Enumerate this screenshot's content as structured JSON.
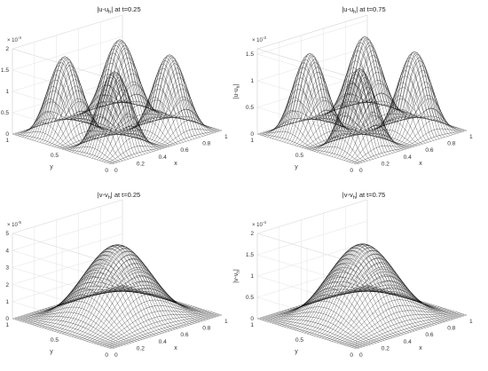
{
  "chart_data": [
    {
      "type": "surface",
      "title_main": "|u-u",
      "title_sub": "h",
      "title_tail": "| at t=0.25",
      "zlabel_main": "|u-u",
      "zlabel_sub": "h",
      "zlabel_tail": "|",
      "xlabel": "x",
      "ylabel": "y",
      "multiplier_base": "× 10",
      "multiplier_exp": "-4",
      "zlim": [
        0,
        2
      ],
      "zticks": [
        "0",
        "0.5",
        "1",
        "1.5",
        "2"
      ],
      "xticks": [
        "0",
        "0.2",
        "0.4",
        "0.6",
        "0.8",
        "1"
      ],
      "yticks": [
        "1",
        "0.5",
        "0"
      ],
      "peak": 1.8,
      "shape": "four-bump",
      "xlim": [
        0,
        1
      ],
      "ylim": [
        0,
        1
      ],
      "colormap": [
        "#3e26a8",
        "#4744e8",
        "#2e87f7",
        "#0cb5cc",
        "#36c18c",
        "#9dc43a",
        "#f0b83a",
        "#f9fb15"
      ]
    },
    {
      "type": "surface",
      "title_main": "|u-u",
      "title_sub": "h",
      "title_tail": "| at t=0.75",
      "zlabel_main": "|u-u",
      "zlabel_sub": "h",
      "zlabel_tail": "|",
      "xlabel": "x",
      "ylabel": "y",
      "multiplier_base": "× 10",
      "multiplier_exp": "-3",
      "zlim": [
        0,
        1.6
      ],
      "zticks": [
        "0",
        "0.5",
        "1",
        "1.5"
      ],
      "xticks": [
        "0",
        "0.2",
        "0.4",
        "0.6",
        "0.8",
        "1"
      ],
      "yticks": [
        "1",
        "0.5",
        "0"
      ],
      "peak": 1.5,
      "shape": "four-bump",
      "xlim": [
        0,
        1
      ],
      "ylim": [
        0,
        1
      ],
      "colormap": [
        "#3e26a8",
        "#4744e8",
        "#2e87f7",
        "#0cb5cc",
        "#36c18c",
        "#9dc43a",
        "#f0b83a",
        "#f9fb15"
      ]
    },
    {
      "type": "surface",
      "title_main": "|v-v",
      "title_sub": "h",
      "title_tail": "| at t=0.25",
      "zlabel_main": "|v-v",
      "zlabel_sub": "h",
      "zlabel_tail": "|",
      "xlabel": "x",
      "ylabel": "y",
      "multiplier_base": "× 10",
      "multiplier_exp": "-5",
      "zlim": [
        0,
        5
      ],
      "zticks": [
        "0",
        "1",
        "2",
        "3",
        "4",
        "5"
      ],
      "xticks": [
        "0",
        "0.2",
        "0.4",
        "0.6",
        "0.8",
        "1"
      ],
      "yticks": [
        "1",
        "0.5",
        "0"
      ],
      "peak": 4.2,
      "shape": "single-bump",
      "xlim": [
        0,
        1
      ],
      "ylim": [
        0,
        1
      ],
      "colormap": [
        "#3e26a8",
        "#4744e8",
        "#2e87f7",
        "#0cb5cc",
        "#36c18c",
        "#9dc43a",
        "#f0b83a",
        "#f9fb15"
      ]
    },
    {
      "type": "surface",
      "title_main": "|v-v",
      "title_sub": "h",
      "title_tail": "| at t=0.75",
      "zlabel_main": "|v-v",
      "zlabel_sub": "h",
      "zlabel_tail": "|",
      "xlabel": "x",
      "ylabel": "y",
      "multiplier_base": "× 10",
      "multiplier_exp": "-4",
      "zlim": [
        0,
        2
      ],
      "zticks": [
        "0",
        "0.5",
        "1",
        "1.5",
        "2"
      ],
      "xticks": [
        "0",
        "0.2",
        "0.4",
        "0.6",
        "0.8",
        "1"
      ],
      "yticks": [
        "1",
        "0.5",
        "0"
      ],
      "peak": 1.7,
      "shape": "single-bump",
      "xlim": [
        0,
        1
      ],
      "ylim": [
        0,
        1
      ],
      "colormap": [
        "#3e26a8",
        "#4744e8",
        "#2e87f7",
        "#0cb5cc",
        "#36c18c",
        "#9dc43a",
        "#f0b83a",
        "#f9fb15"
      ]
    }
  ]
}
